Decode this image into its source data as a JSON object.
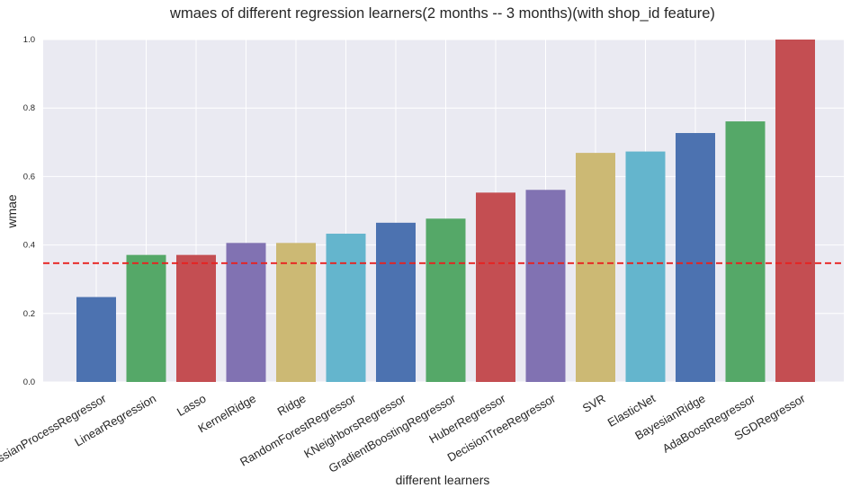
{
  "chart_data": {
    "type": "bar",
    "title": "wmaes of different regression learners(2 months -- 3 months)(with shop_id feature)",
    "xlabel": "different learners",
    "ylabel": "wmae",
    "ylim": [
      0,
      1.0
    ],
    "yticks": [
      0.0,
      0.2,
      0.4,
      0.6,
      0.8,
      1.0
    ],
    "ytick_labels": [
      "0.0",
      "0.2",
      "0.4",
      "0.6",
      "0.8",
      "1.0"
    ],
    "grid": true,
    "reference_line": {
      "value": 0.347,
      "color": "#e8201e",
      "style": "dashed"
    },
    "categories": [
      "GaussianProcessRegressor",
      "LinearRegression",
      "Lasso",
      "KernelRidge",
      "Ridge",
      "RandomForestRegressor",
      "KNeighborsRegressor",
      "GradientBoostingRegressor",
      "HuberRegressor",
      "DecisionTreeRegressor",
      "SVR",
      "ElasticNet",
      "BayesianRidge",
      "AdaBoostRegressor",
      "SGDRegressor"
    ],
    "values": [
      0.248,
      0.371,
      0.371,
      0.406,
      0.406,
      0.433,
      0.465,
      0.477,
      0.553,
      0.561,
      0.669,
      0.673,
      0.727,
      0.761,
      1.0
    ],
    "colors": [
      "#4c72b0",
      "#55a868",
      "#c44e52",
      "#8172b2",
      "#ccb974",
      "#64b5cd",
      "#4c72b0",
      "#55a868",
      "#c44e52",
      "#8172b2",
      "#ccb974",
      "#64b5cd",
      "#4c72b0",
      "#55a868",
      "#c44e52"
    ],
    "background_color": "#eaeaf2",
    "grid_color": "#ffffff"
  }
}
